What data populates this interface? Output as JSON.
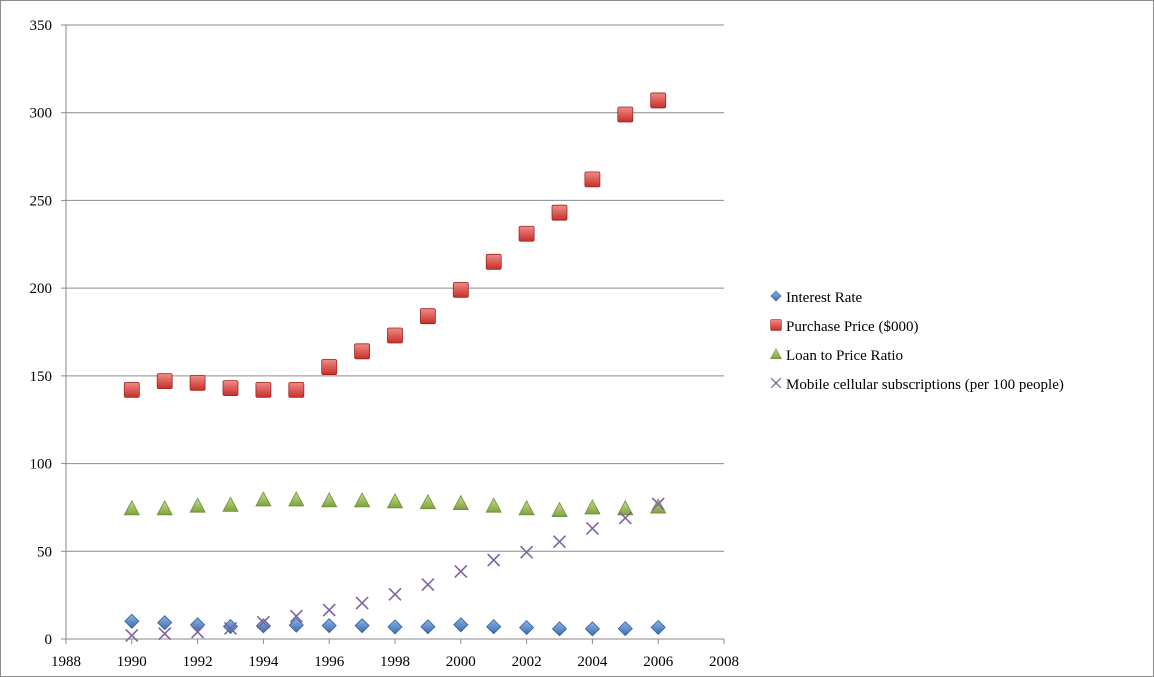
{
  "chart_data": {
    "type": "scatter",
    "title": "",
    "xlabel": "",
    "ylabel": "",
    "xlim": [
      1988,
      2008
    ],
    "ylim": [
      0,
      350
    ],
    "x_ticks": [
      1988,
      1990,
      1992,
      1994,
      1996,
      1998,
      2000,
      2002,
      2004,
      2006,
      2008
    ],
    "y_ticks": [
      0,
      50,
      100,
      150,
      200,
      250,
      300,
      350
    ],
    "grid": "horizontal",
    "legend_position": "right",
    "x": [
      1990,
      1991,
      1992,
      1993,
      1994,
      1995,
      1996,
      1997,
      1998,
      1999,
      2000,
      2001,
      2002,
      2003,
      2004,
      2005,
      2006
    ],
    "series": [
      {
        "name": "Interest Rate",
        "marker": "diamond",
        "color": "#4f81bd",
        "values": [
          10.1,
          9.3,
          8.1,
          7.1,
          7.5,
          7.9,
          7.6,
          7.6,
          6.9,
          7.0,
          8.1,
          7.0,
          6.5,
          5.8,
          5.8,
          5.9,
          6.6
        ]
      },
      {
        "name": "Purchase Price ($000)",
        "marker": "square",
        "color": "#e0423d",
        "values": [
          142,
          147,
          146,
          143,
          142,
          142,
          155,
          164,
          173,
          184,
          199,
          215,
          231,
          243,
          262,
          299,
          307
        ]
      },
      {
        "name": "Loan to Price Ratio",
        "marker": "triangle",
        "color": "#9bbb59",
        "values": [
          74.5,
          74.5,
          76,
          76.5,
          79.5,
          79.5,
          79,
          79,
          78.5,
          78,
          77.5,
          76,
          74.5,
          73.5,
          75,
          74.5,
          75.5
        ]
      },
      {
        "name": "Mobile cellular subscriptions (per 100 people)",
        "marker": "x",
        "color": "#8064a2",
        "values": [
          2,
          3,
          4,
          6,
          9.5,
          13,
          16.5,
          20.5,
          25.5,
          31,
          38.5,
          45,
          49.5,
          55.5,
          63,
          69,
          77
        ]
      }
    ]
  }
}
